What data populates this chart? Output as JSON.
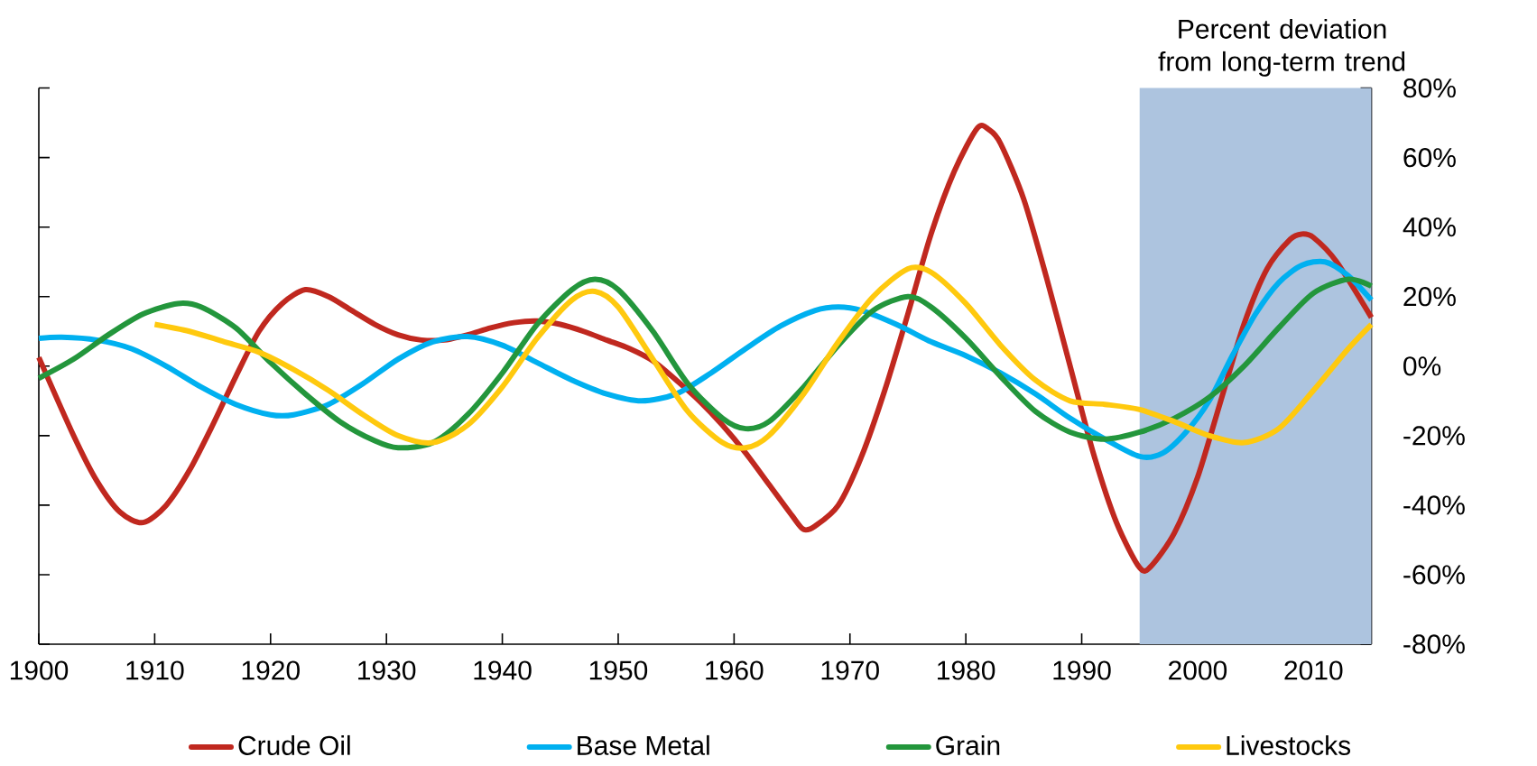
{
  "chart_data": {
    "type": "line",
    "ylabel": "Percent deviation from long-term trend",
    "xlim": [
      1900,
      2015
    ],
    "xticks": [
      1900,
      1910,
      1920,
      1930,
      1940,
      1950,
      1960,
      1970,
      1980,
      1990,
      2000,
      2010
    ],
    "ylim": [
      -80,
      80
    ],
    "yticks": [
      {
        "value": -80,
        "label": "-80%"
      },
      {
        "value": -60,
        "label": "-60%"
      },
      {
        "value": -40,
        "label": "-40%"
      },
      {
        "value": -20,
        "label": "-20%"
      },
      {
        "value": 0,
        "label": "0%"
      },
      {
        "value": 20,
        "label": "20%"
      },
      {
        "value": 40,
        "label": "40%"
      },
      {
        "value": 60,
        "label": "60%"
      },
      {
        "value": 80,
        "label": "80%"
      }
    ],
    "grid": false,
    "legend": "bottom",
    "marker": "none",
    "line_style": "solid",
    "bands": [
      {
        "axis": "x",
        "from": 1995,
        "to": 2015,
        "color": "#adc4df"
      }
    ],
    "series": [
      {
        "name": "Crude Oil",
        "color": "#c0281f",
        "x": [
          1900,
          1903,
          1905,
          1907,
          1909,
          1911,
          1913,
          1915,
          1917,
          1919,
          1921,
          1923,
          1925,
          1927,
          1929,
          1931,
          1933,
          1935,
          1937,
          1939,
          1941,
          1943,
          1945,
          1947,
          1949,
          1951,
          1953,
          1955,
          1957,
          1959,
          1961,
          1963,
          1965,
          1966,
          1967,
          1969,
          1971,
          1973,
          1975,
          1977,
          1979,
          1981,
          1982,
          1983,
          1985,
          1987,
          1989,
          1991,
          1993,
          1995,
          1996,
          1998,
          2000,
          2002,
          2004,
          2006,
          2008,
          2009,
          2010,
          2012,
          2015
        ],
        "values": [
          2.5,
          -20,
          -33,
          -42,
          -45,
          -40,
          -30,
          -17,
          -3,
          10,
          18,
          22,
          20,
          16,
          12,
          9,
          7.5,
          7.5,
          9,
          11,
          12.5,
          13,
          12,
          10,
          7.5,
          5,
          1.5,
          -4,
          -10,
          -17,
          -25,
          -34,
          -43,
          -47,
          -46,
          -40,
          -26,
          -7,
          15,
          38,
          56,
          68.5,
          68,
          64,
          48,
          25,
          0,
          -25,
          -45,
          -58,
          -57.5,
          -48,
          -32,
          -10,
          12,
          28,
          36.5,
          38,
          37,
          30,
          14
        ]
      },
      {
        "name": "Base Metal",
        "color": "#00b0f0",
        "x": [
          1900,
          1902,
          1905,
          1908,
          1911,
          1914,
          1917,
          1920,
          1922,
          1925,
          1928,
          1931,
          1934,
          1937,
          1940,
          1943,
          1946,
          1949,
          1952,
          1955,
          1958,
          1961,
          1964,
          1967,
          1969,
          1971,
          1974,
          1977,
          1980,
          1983,
          1986,
          1989,
          1992,
          1995,
          1997,
          1999,
          2001,
          2003,
          2005,
          2007,
          2009,
          2011,
          2013,
          2015
        ],
        "values": [
          8,
          8.3,
          7.5,
          5,
          0,
          -6,
          -11,
          -14,
          -14,
          -11,
          -5,
          2,
          7,
          8.5,
          6,
          1,
          -4,
          -8,
          -10,
          -8,
          -2,
          5,
          11.5,
          16,
          17,
          16,
          12,
          7,
          3,
          -2,
          -8,
          -15,
          -21,
          -26,
          -25,
          -19,
          -10,
          3,
          15,
          24,
          29,
          30,
          26,
          19
        ]
      },
      {
        "name": "Grain",
        "color": "#23963c",
        "x": [
          1900,
          1903,
          1906,
          1909,
          1912,
          1914,
          1917,
          1920,
          1923,
          1926,
          1929,
          1931,
          1934,
          1937,
          1940,
          1943,
          1946,
          1948,
          1950,
          1953,
          1956,
          1959,
          1961,
          1963,
          1966,
          1969,
          1972,
          1975,
          1977,
          1980,
          1983,
          1986,
          1989,
          1992,
          1995,
          1998,
          2001,
          2004,
          2007,
          2010,
          2013,
          2015
        ],
        "values": [
          -3.5,
          2,
          9,
          15,
          18,
          17,
          11,
          1,
          -8,
          -16,
          -21.5,
          -23.5,
          -22,
          -14,
          -2,
          12,
          22,
          25,
          22,
          10,
          -5,
          -15,
          -18,
          -16,
          -6,
          6,
          16,
          20,
          17,
          8,
          -3,
          -13,
          -19,
          -21,
          -19,
          -15,
          -9,
          0,
          11,
          21,
          25,
          23
        ]
      },
      {
        "name": "Livestocks",
        "color": "#ffc90e",
        "x": [
          1910,
          1913,
          1916,
          1919,
          1922,
          1925,
          1928,
          1931,
          1934,
          1937,
          1940,
          1943,
          1946,
          1948,
          1950,
          1953,
          1956,
          1959,
          1961,
          1963,
          1966,
          1969,
          1972,
          1975,
          1977,
          1980,
          1983,
          1986,
          1989,
          1992,
          1995,
          1998,
          2001,
          2004,
          2007,
          2010,
          2013,
          2015
        ],
        "values": [
          12,
          10,
          7,
          4,
          -1,
          -7,
          -14,
          -20,
          -22,
          -17,
          -6,
          8,
          19,
          21.5,
          17,
          2,
          -13,
          -22,
          -23.5,
          -20,
          -8,
          7,
          20,
          28,
          27,
          18,
          6,
          -4,
          -10,
          -11,
          -12.5,
          -16,
          -20,
          -22,
          -18,
          -7,
          5,
          12
        ]
      }
    ]
  }
}
